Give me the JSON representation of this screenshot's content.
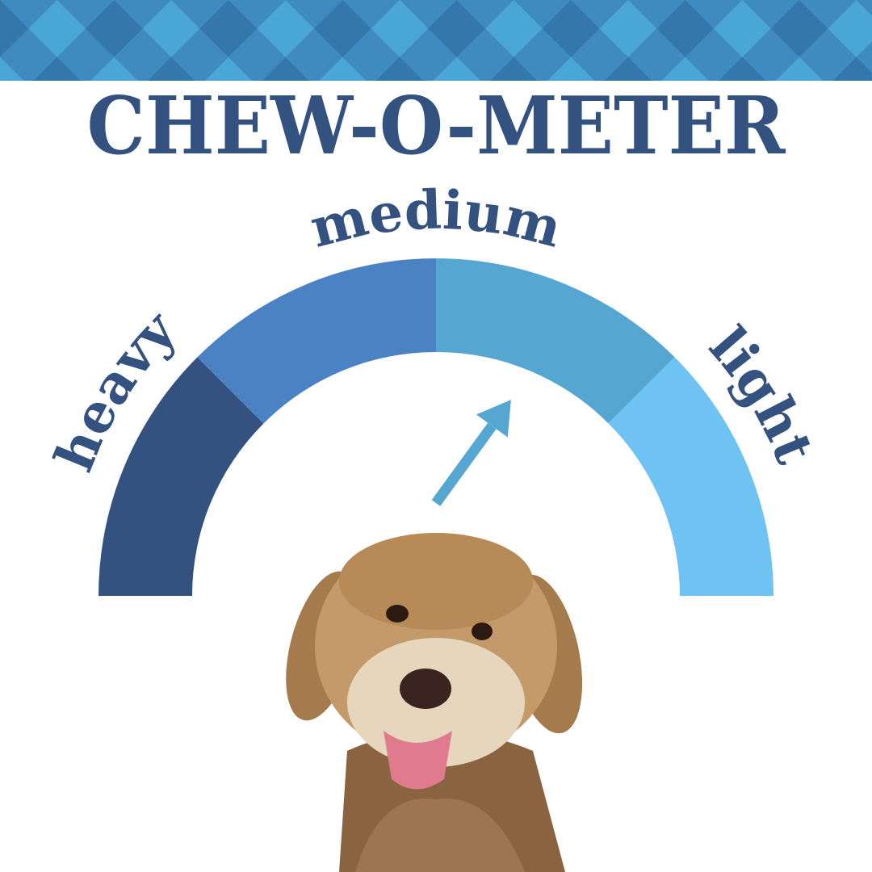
{
  "title": "CHEW-O-METER",
  "gauge": {
    "labels": {
      "heavy": "heavy",
      "medium": "medium",
      "light": "light"
    },
    "segments": [
      {
        "name": "heavy",
        "color": "#34527f"
      },
      {
        "name": "medium-heavy",
        "color": "#4a82c4"
      },
      {
        "name": "medium-light",
        "color": "#56a6d2"
      },
      {
        "name": "light",
        "color": "#6fc3f3"
      }
    ],
    "pointer_level_percent": 70,
    "pointer_color": "#56a6d2"
  },
  "colors": {
    "text": "#34527f",
    "banner_light": "#4aa6d6",
    "banner_mid": "#3f8bc0",
    "banner_dark": "#3377ab"
  },
  "image": {
    "subject": "dog-photo"
  }
}
